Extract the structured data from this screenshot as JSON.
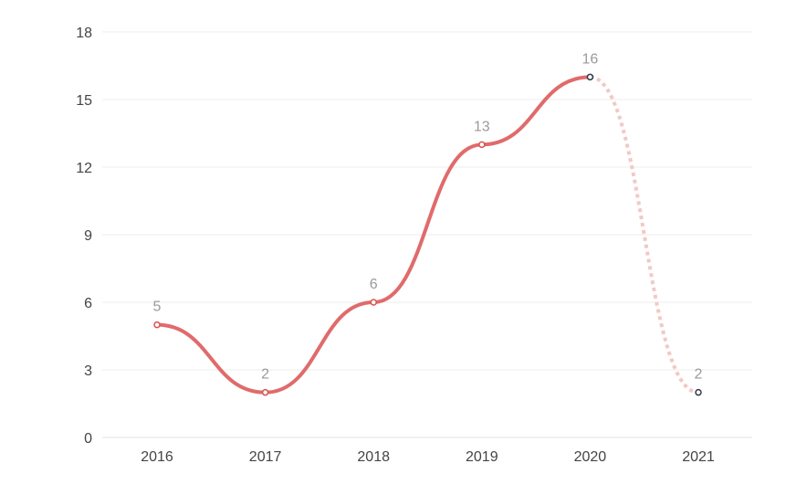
{
  "chart_data": {
    "type": "line",
    "title": "",
    "xlabel": "",
    "ylabel": "",
    "categories": [
      "2016",
      "2017",
      "2018",
      "2019",
      "2020",
      "2021"
    ],
    "values": [
      5,
      2,
      6,
      13,
      16,
      2
    ],
    "data_labels": [
      "5",
      "2",
      "6",
      "13",
      "16",
      "2"
    ],
    "y_ticks": [
      "0",
      "3",
      "6",
      "9",
      "12",
      "15",
      "18"
    ],
    "ylim": [
      0,
      18
    ],
    "grid": true,
    "smooth": true,
    "projected_from_index": 4,
    "colors": {
      "line": "#e06b6b",
      "projected": "#f3c8c4",
      "point_fill": "#ffffff",
      "point_stroke": "#d9534f",
      "projected_point_stroke": "#333a4a",
      "grid": "#ececec",
      "tick_text": "#444444",
      "label_text": "#9a9a9a"
    }
  }
}
